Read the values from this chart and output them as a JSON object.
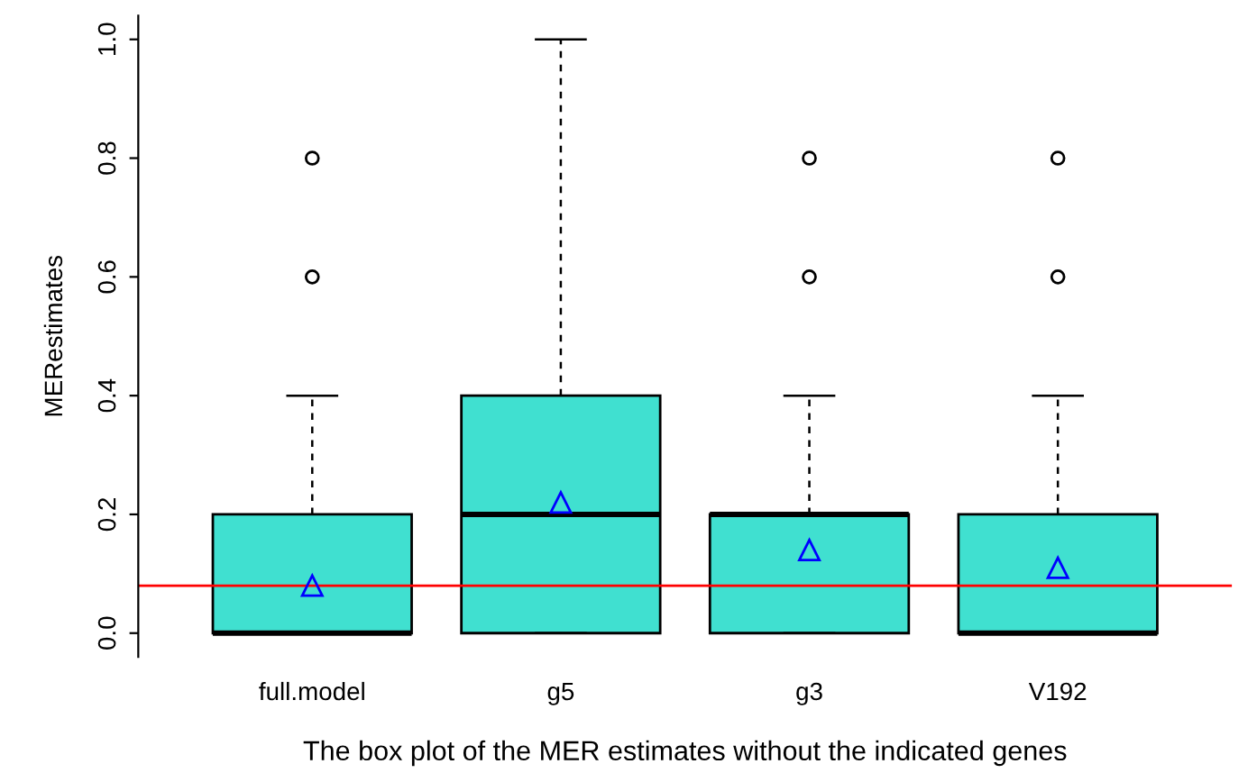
{
  "chart_data": {
    "type": "box",
    "xlabel": "The box plot of the MER estimates without the indicated genes",
    "ylabel": "MERestimates",
    "categories": [
      "full.model",
      "g5",
      "g3",
      "V192"
    ],
    "color": "#40e0d0",
    "boxes": [
      {
        "low": 0,
        "q1": 0,
        "median": 0,
        "q3": 0.2,
        "high": 0.4,
        "mean": 0.08,
        "outliers": [
          0.6,
          0.8
        ]
      },
      {
        "low": 0,
        "q1": 0,
        "median": 0.2,
        "q3": 0.4,
        "high": 1.0,
        "mean": 0.22
      },
      {
        "low": 0,
        "q1": 0,
        "median": 0.2,
        "q3": 0.2,
        "high": 0.4,
        "mean": 0.14,
        "outliers": [
          0.6,
          0.8
        ]
      },
      {
        "low": 0,
        "q1": 0,
        "median": 0,
        "q3": 0.2,
        "high": 0.4,
        "mean": 0.11,
        "outliers": [
          0.6,
          0.8
        ]
      }
    ],
    "ylim": [
      -0.04,
      1.04
    ],
    "yticks": [
      {
        "value": 0,
        "label": "0.0"
      },
      {
        "value": 0.2,
        "label": "0.2"
      },
      {
        "value": 0.4,
        "label": "0.4"
      },
      {
        "value": 0.6,
        "label": "0.6"
      },
      {
        "value": 0.8,
        "label": "0.8"
      },
      {
        "value": 1,
        "label": "1.0"
      }
    ],
    "ref_lines": [
      {
        "axis": "y",
        "value": 0.08,
        "color": "#ff0000"
      }
    ]
  }
}
